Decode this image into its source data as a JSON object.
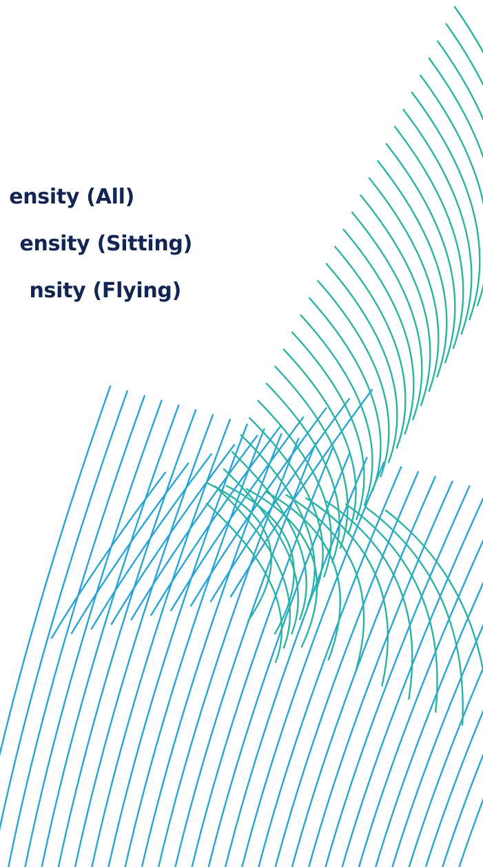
{
  "menu": {
    "items": [
      {
        "label": "ensity (All)"
      },
      {
        "label": "ensity (Sitting)"
      },
      {
        "label": "nsity (Flying)"
      }
    ]
  },
  "colors": {
    "text": "#132553",
    "teal": "#2ab3a3",
    "blue": "#26a4d8",
    "background": "#ffffff"
  }
}
